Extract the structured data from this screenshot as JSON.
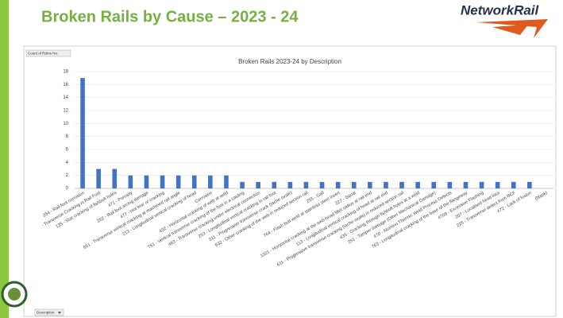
{
  "slide": {
    "title": "Broken Rails by Cause – 2023 - 24",
    "logo": "NetworkRail"
  },
  "controls": {
    "value_field": "Count of Rdms No.",
    "axis_field": "Description"
  },
  "chart_data": {
    "type": "bar",
    "title": "Broken Rails 2023-24 by Description",
    "categories": [
      "254 - Rail foot corrosion",
      "- Transverse Cracking in Rail Foot",
      "135 - Star cracking of fishbolt holes",
      "471 - Porosity",
      "252 - Rail foot arcing damage",
      "477 - Hot tear or cracking",
      "651 - Transverse vertical cracking at machined rail angle",
      "213 - Longitudinal vertical cracking of head",
      "Corrosion",
      "432 - Horizontal cracking of web at weld",
      "751 - Vertical transverse cracking of the foot in a casting",
      "483 - Transverse cracking under electrical connection",
      "253 - Longitudinal vertical cracking in rail foot",
      "211 - Progressive transverse crack (tache ovale)",
      "632 - Other cracking of the web in reduced section rail",
      "255 - Gall",
      "764 - Flash butt weld at stainless steel insert",
      "227 - Squat",
      "1321 - Horizontal cracking at the web-head fillet radius at rail end",
      "113 - Longitudinal vertical cracking of head at rail end",
      "611 - Progressive transverse cracking (tache ovale) in reduced section rail",
      "435 - Cracking through fishbolt holes at a weld",
      "251 - Tamper damage (Other Mechanical Damage)",
      "470 - Alumino Thermic Weld Process Defects",
      "763 - Longitudinal cracking of the base of the flangeway",
      "4703 - Excessive Flashing",
      "207 - Localised head loss",
      "225 - Transverse defect from RCF",
      "472 - Lack of fusion",
      "(blank)"
    ],
    "values": [
      17,
      3,
      3,
      2,
      2,
      2,
      2,
      2,
      2,
      2,
      1,
      1,
      1,
      1,
      1,
      1,
      1,
      1,
      1,
      1,
      1,
      1,
      1,
      1,
      1,
      1,
      1,
      1,
      1,
      null
    ],
    "color": "#4472c4",
    "ylim": [
      0,
      18
    ],
    "yticks": [
      0,
      2,
      4,
      6,
      8,
      10,
      12,
      14,
      16,
      18
    ],
    "grid": true
  }
}
